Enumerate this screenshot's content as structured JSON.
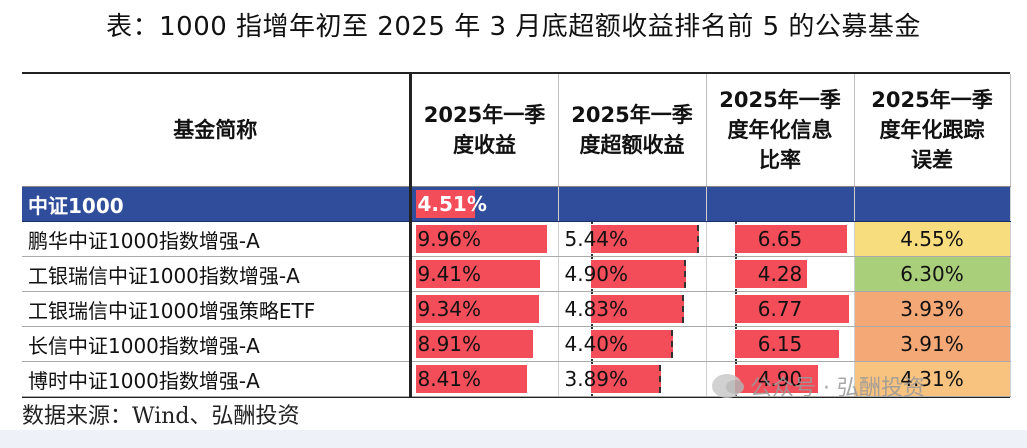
{
  "title": "表：1000 指增年初至 2025 年 3 月底超额收益排名前 5 的公募基金",
  "table": {
    "headers": [
      "基金简称",
      "2025年一季度收益",
      "2025年一季度超额收益",
      "2025年一季度年化信息比率",
      "2025年一季度年化跟踪误差"
    ],
    "header_lines": [
      [
        "基金简称"
      ],
      [
        "2025年一季",
        "度收益"
      ],
      [
        "2025年一季",
        "度超额收益"
      ],
      [
        "2025年一季",
        "度年化信息",
        "比率"
      ],
      [
        "2025年一季",
        "度年化跟踪",
        "误差"
      ]
    ],
    "index_row": {
      "name": "中证1000",
      "return": "4.51%",
      "return_value": 4.51
    },
    "rows": [
      {
        "name": "鹏华中证1000指数增强-A",
        "return": "9.96%",
        "return_value": 9.96,
        "excess": "5.44%",
        "excess_value": 5.44,
        "ir": "6.65",
        "ir_value": 6.65,
        "te": "4.55%",
        "te_color": "#f8dd7f"
      },
      {
        "name": "工银瑞信中证1000指数增强-A",
        "return": "9.41%",
        "return_value": 9.41,
        "excess": "4.90%",
        "excess_value": 4.9,
        "ir": "4.28",
        "ir_value": 4.28,
        "te": "6.30%",
        "te_color": "#a9cf7a"
      },
      {
        "name": "工银瑞信中证1000增强策略ETF",
        "return": "9.34%",
        "return_value": 9.34,
        "excess": "4.83%",
        "excess_value": 4.83,
        "ir": "6.77",
        "ir_value": 6.77,
        "te": "3.93%",
        "te_color": "#f4a876"
      },
      {
        "name": "长信中证1000指数增强-A",
        "return": "8.91%",
        "return_value": 8.91,
        "excess": "4.40%",
        "excess_value": 4.4,
        "ir": "6.15",
        "ir_value": 6.15,
        "te": "3.91%",
        "te_color": "#f4a876"
      },
      {
        "name": "博时中证1000指数增强-A",
        "return": "8.41%",
        "return_value": 8.41,
        "excess": "3.89%",
        "excess_value": 3.89,
        "ir": "4.90",
        "ir_value": 4.9,
        "te": "4.31%",
        "te_color": "#f8c27f"
      }
    ]
  },
  "source": "数据来源：Wind、弘酬投资",
  "watermark": "公众号 · 弘酬投资",
  "colors": {
    "index_row_bg": "#2f4d9a",
    "bar": "#f44d5a"
  }
}
